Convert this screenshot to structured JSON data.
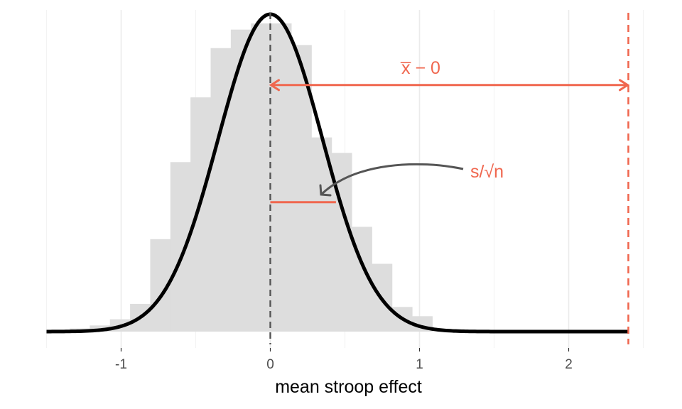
{
  "chart_data": {
    "type": "histogram-with-density",
    "xlabel": "mean stroop effect",
    "ylabel": "",
    "xlim": [
      -1.5,
      2.5
    ],
    "ylim": [
      0,
      1
    ],
    "x_ticks": [
      -1,
      0,
      1,
      2
    ],
    "x_tick_labels": [
      "-1",
      "0",
      "1",
      "2"
    ],
    "grid": "vertical major and minor",
    "histogram": {
      "color": "#dddddd",
      "bin_width": 0.135,
      "bin_starts": [
        -1.48,
        -1.345,
        -1.21,
        -1.075,
        -0.94,
        -0.805,
        -0.67,
        -0.535,
        -0.4,
        -0.265,
        -0.13,
        0.005,
        0.14,
        0.275,
        0.41,
        0.545,
        0.68,
        0.815,
        0.95,
        1.085
      ],
      "heights": [
        0.0,
        0.01,
        0.02,
        0.04,
        0.09,
        0.3,
        0.55,
        0.76,
        0.92,
        0.98,
        1.0,
        1.0,
        0.93,
        0.63,
        0.58,
        0.34,
        0.22,
        0.08,
        0.05,
        0.0
      ]
    },
    "density": {
      "color": "#000000",
      "mean": 0,
      "sd": 0.35,
      "x_range": [
        -1.5,
        2.4
      ],
      "peak": 1.03
    },
    "null_line": {
      "x": 0,
      "color": "#555555",
      "style": "dashed"
    },
    "observed_line": {
      "x": 2.4,
      "color": "#f0674f",
      "style": "dashed"
    },
    "mean_diff_arrow": {
      "from": 0,
      "to": 2.4,
      "y": 0.8,
      "label": "x̅ − 0",
      "color": "#f0674f"
    },
    "se_segment": {
      "from": 0,
      "to": 0.44,
      "y": 0.42,
      "color": "#f0674f"
    },
    "se_label": {
      "text": "s/√n",
      "color": "#f0674f",
      "arrow_color": "#555555"
    }
  }
}
